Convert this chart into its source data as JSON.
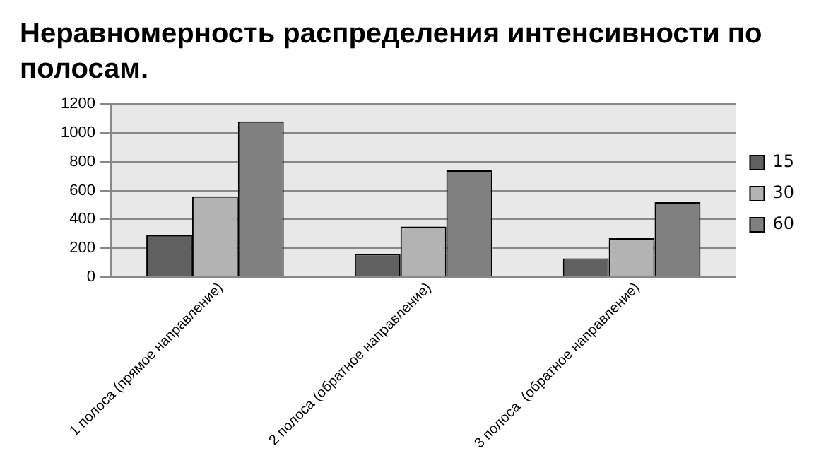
{
  "chart_data": {
    "type": "bar",
    "title": "Неравномерность распределения интенсивности по полосам.",
    "categories": [
      "1 полоса (прямое направление)",
      "2 полоса (обратное направление)",
      "3 полоса  (обратное направление)"
    ],
    "series": [
      {
        "name": "15",
        "color": "#606060",
        "values": [
          290,
          160,
          130
        ]
      },
      {
        "name": "30",
        "color": "#b3b3b3",
        "values": [
          560,
          350,
          270
        ]
      },
      {
        "name": "60",
        "color": "#808080",
        "values": [
          1080,
          740,
          520
        ]
      }
    ],
    "ylim": [
      0,
      1200
    ],
    "yticks": [
      0,
      200,
      400,
      600,
      800,
      1000,
      1200
    ],
    "grid": "y",
    "legend": "right"
  }
}
